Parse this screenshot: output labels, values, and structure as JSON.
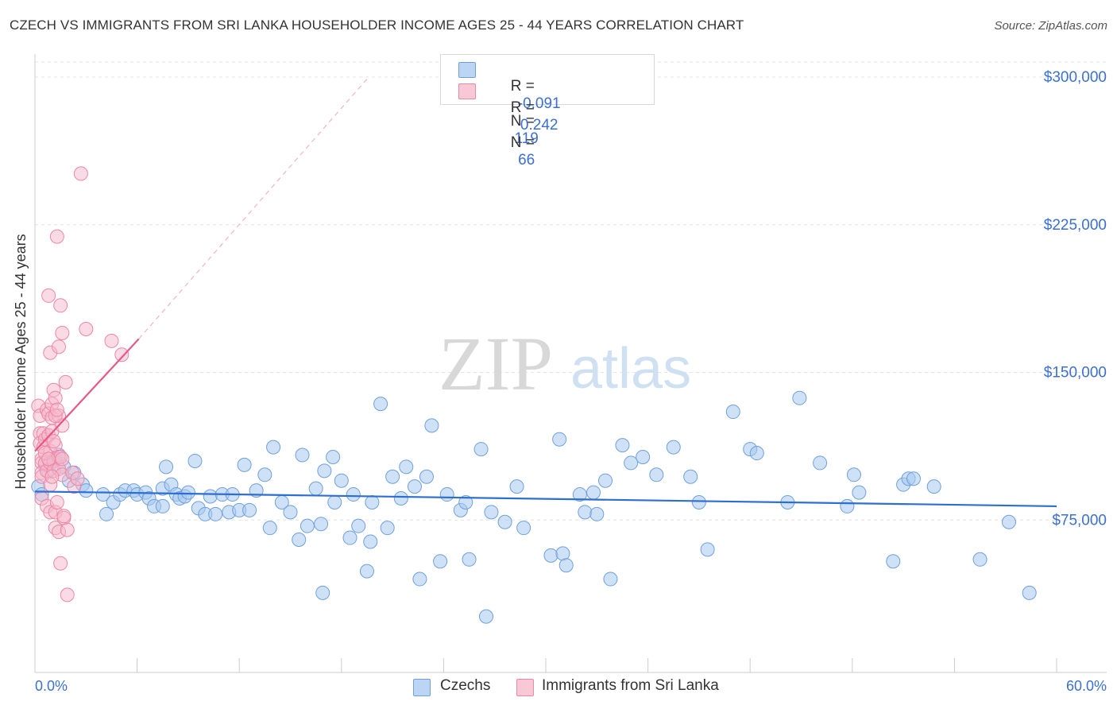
{
  "title": "CZECH VS IMMIGRANTS FROM SRI LANKA HOUSEHOLDER INCOME AGES 25 - 44 YEARS CORRELATION CHART",
  "source": "Source: ZipAtlas.com",
  "watermark": {
    "zip": "ZIP",
    "atlas": "atlas"
  },
  "legend": {
    "series1": {
      "r_label": "R =",
      "r_value": "-0.091",
      "n_label": "N =",
      "n_value": "119"
    },
    "series2": {
      "r_label": "R =",
      "r_value": "0.242",
      "n_label": "N =",
      "n_value": "66"
    }
  },
  "bottom_legend": {
    "series1": "Czechs",
    "series2": "Immigrants from Sri Lanka"
  },
  "colors": {
    "blue_fill": "#a8c8f0",
    "blue_stroke": "#6fa0dc",
    "blue_line": "#2d6fd0",
    "pink_fill": "#f6b8cb",
    "pink_stroke": "#ec87a5",
    "pink_line": "#e8578a",
    "axis_label": "#3b6fd4",
    "grid": "#e4e4e4"
  },
  "chart_data": {
    "type": "scatter",
    "title": "CZECH VS IMMIGRANTS FROM SRI LANKA HOUSEHOLDER INCOME AGES 25 - 44 YEARS CORRELATION CHART",
    "xlabel": "",
    "ylabel": "Householder Income Ages 25 - 44 years",
    "xlim": [
      0,
      60
    ],
    "ylim": [
      0,
      310000
    ],
    "x_tick_labels": {
      "left": "0.0%",
      "right": "60.0%"
    },
    "y_ticks": [
      {
        "value": 75000,
        "label": "$75,000"
      },
      {
        "value": 150000,
        "label": "$150,000"
      },
      {
        "value": 225000,
        "label": "$225,000"
      },
      {
        "value": 300000,
        "label": "$300,000"
      }
    ],
    "series": [
      {
        "name": "Czechs",
        "r": -0.091,
        "n": 119,
        "trend": {
          "x": [
            0,
            60
          ],
          "y": [
            89500,
            82000
          ]
        },
        "points": [
          [
            0.2,
            92000
          ],
          [
            0.4,
            88000
          ],
          [
            0.6,
            103000
          ],
          [
            0.8,
            100000
          ],
          [
            1.0,
            105000
          ],
          [
            1.2,
            106000
          ],
          [
            1.4,
            108000
          ],
          [
            1.7,
            102000
          ],
          [
            2.0,
            95000
          ],
          [
            2.3,
            99000
          ],
          [
            2.8,
            93000
          ],
          [
            3.0,
            90000
          ],
          [
            4.0,
            88000
          ],
          [
            4.2,
            78000
          ],
          [
            4.6,
            84000
          ],
          [
            5.0,
            88000
          ],
          [
            5.3,
            90000
          ],
          [
            5.8,
            90000
          ],
          [
            6.0,
            88000
          ],
          [
            6.5,
            89000
          ],
          [
            6.7,
            86000
          ],
          [
            7.0,
            82000
          ],
          [
            7.5,
            91000
          ],
          [
            7.5,
            82000
          ],
          [
            7.7,
            102000
          ],
          [
            8.0,
            93000
          ],
          [
            8.3,
            88000
          ],
          [
            8.5,
            86000
          ],
          [
            8.8,
            87000
          ],
          [
            9.0,
            89000
          ],
          [
            9.4,
            105000
          ],
          [
            9.6,
            81000
          ],
          [
            10.0,
            78000
          ],
          [
            10.3,
            87000
          ],
          [
            10.6,
            78000
          ],
          [
            11.0,
            88000
          ],
          [
            11.4,
            79000
          ],
          [
            11.6,
            88000
          ],
          [
            12.0,
            80000
          ],
          [
            12.3,
            103000
          ],
          [
            12.6,
            80000
          ],
          [
            13.0,
            90000
          ],
          [
            13.5,
            98000
          ],
          [
            13.8,
            71000
          ],
          [
            14.0,
            112000
          ],
          [
            14.5,
            84000
          ],
          [
            15.0,
            79000
          ],
          [
            15.5,
            65000
          ],
          [
            15.7,
            108000
          ],
          [
            16.0,
            72000
          ],
          [
            16.5,
            91000
          ],
          [
            16.8,
            73000
          ],
          [
            16.9,
            38000
          ],
          [
            17.0,
            100000
          ],
          [
            17.5,
            107000
          ],
          [
            17.6,
            84000
          ],
          [
            18.0,
            95000
          ],
          [
            18.5,
            66000
          ],
          [
            18.7,
            88000
          ],
          [
            19.0,
            72000
          ],
          [
            19.5,
            49000
          ],
          [
            19.7,
            64000
          ],
          [
            19.8,
            84000
          ],
          [
            20.3,
            134000
          ],
          [
            20.7,
            71000
          ],
          [
            21.0,
            97000
          ],
          [
            21.5,
            86000
          ],
          [
            21.8,
            102000
          ],
          [
            22.3,
            92000
          ],
          [
            22.6,
            45000
          ],
          [
            23.0,
            97000
          ],
          [
            23.3,
            123000
          ],
          [
            23.8,
            54000
          ],
          [
            24.2,
            88000
          ],
          [
            25.0,
            80000
          ],
          [
            25.3,
            84000
          ],
          [
            25.5,
            55000
          ],
          [
            26.2,
            111000
          ],
          [
            26.5,
            26000
          ],
          [
            26.8,
            79000
          ],
          [
            27.6,
            74000
          ],
          [
            28.3,
            92000
          ],
          [
            28.7,
            71000
          ],
          [
            30.3,
            57000
          ],
          [
            30.8,
            116000
          ],
          [
            31.0,
            58000
          ],
          [
            31.2,
            52000
          ],
          [
            32.0,
            88000
          ],
          [
            32.3,
            79000
          ],
          [
            32.8,
            89000
          ],
          [
            33.0,
            78000
          ],
          [
            33.5,
            95000
          ],
          [
            33.8,
            45000
          ],
          [
            34.5,
            113000
          ],
          [
            35.0,
            104000
          ],
          [
            35.7,
            107000
          ],
          [
            36.5,
            98000
          ],
          [
            37.5,
            112000
          ],
          [
            38.5,
            97000
          ],
          [
            39.0,
            84000
          ],
          [
            39.5,
            60000
          ],
          [
            41.0,
            130000
          ],
          [
            42.0,
            111000
          ],
          [
            42.4,
            109000
          ],
          [
            44.2,
            84000
          ],
          [
            44.9,
            137000
          ],
          [
            46.1,
            104000
          ],
          [
            47.7,
            82000
          ],
          [
            48.1,
            98000
          ],
          [
            48.4,
            89000
          ],
          [
            50.4,
            54000
          ],
          [
            51.0,
            93000
          ],
          [
            51.3,
            96000
          ],
          [
            51.6,
            96000
          ],
          [
            52.8,
            92000
          ],
          [
            55.5,
            55000
          ],
          [
            57.2,
            74000
          ],
          [
            58.4,
            38000
          ]
        ]
      },
      {
        "name": "Immigrants from Sri Lanka",
        "r": 0.242,
        "n": 66,
        "trend": {
          "x": [
            0,
            6.1
          ],
          "y": [
            110000,
            167000
          ]
        },
        "trend_extension": {
          "x": [
            6.1,
            19.6
          ],
          "y": [
            167000,
            300000
          ]
        },
        "points": [
          [
            0.2,
            133000
          ],
          [
            0.3,
            128000
          ],
          [
            0.3,
            119000
          ],
          [
            0.3,
            114000
          ],
          [
            0.4,
            106000
          ],
          [
            0.4,
            104000
          ],
          [
            0.4,
            99000
          ],
          [
            0.4,
            97000
          ],
          [
            0.4,
            86000
          ],
          [
            0.5,
            119000
          ],
          [
            0.5,
            112000
          ],
          [
            0.6,
            116000
          ],
          [
            0.6,
            104000
          ],
          [
            0.7,
            131000
          ],
          [
            0.7,
            100000
          ],
          [
            0.7,
            82000
          ],
          [
            0.8,
            189000
          ],
          [
            0.8,
            129000
          ],
          [
            0.8,
            118000
          ],
          [
            0.9,
            110000
          ],
          [
            0.9,
            104000
          ],
          [
            0.9,
            93000
          ],
          [
            0.9,
            79000
          ],
          [
            0.9,
            160000
          ],
          [
            1.0,
            134000
          ],
          [
            1.0,
            127000
          ],
          [
            1.0,
            120000
          ],
          [
            1.1,
            141000
          ],
          [
            1.1,
            105000
          ],
          [
            1.1,
            100000
          ],
          [
            1.2,
            137000
          ],
          [
            1.2,
            113000
          ],
          [
            1.2,
            79000
          ],
          [
            1.2,
            71000
          ],
          [
            1.3,
            219000
          ],
          [
            1.3,
            84000
          ],
          [
            1.4,
            163000
          ],
          [
            1.4,
            128000
          ],
          [
            1.4,
            101000
          ],
          [
            1.4,
            107000
          ],
          [
            1.4,
            69000
          ],
          [
            1.5,
            184000
          ],
          [
            1.5,
            53000
          ],
          [
            1.5,
            107000
          ],
          [
            1.6,
            123000
          ],
          [
            1.6,
            106000
          ],
          [
            1.6,
            98000
          ],
          [
            1.6,
            170000
          ],
          [
            1.7,
            76000
          ],
          [
            1.7,
            77000
          ],
          [
            1.8,
            145000
          ],
          [
            1.9,
            37000
          ],
          [
            1.9,
            70000
          ],
          [
            2.2,
            99000
          ],
          [
            2.3,
            92000
          ],
          [
            2.5,
            96000
          ],
          [
            2.7,
            251000
          ],
          [
            3.0,
            172000
          ],
          [
            4.5,
            166000
          ],
          [
            5.1,
            159000
          ],
          [
            1.2,
            128000
          ],
          [
            1.3,
            131000
          ],
          [
            0.6,
            109000
          ],
          [
            1.0,
            97000
          ],
          [
            0.8,
            106000
          ],
          [
            1.1,
            115000
          ]
        ]
      }
    ]
  }
}
